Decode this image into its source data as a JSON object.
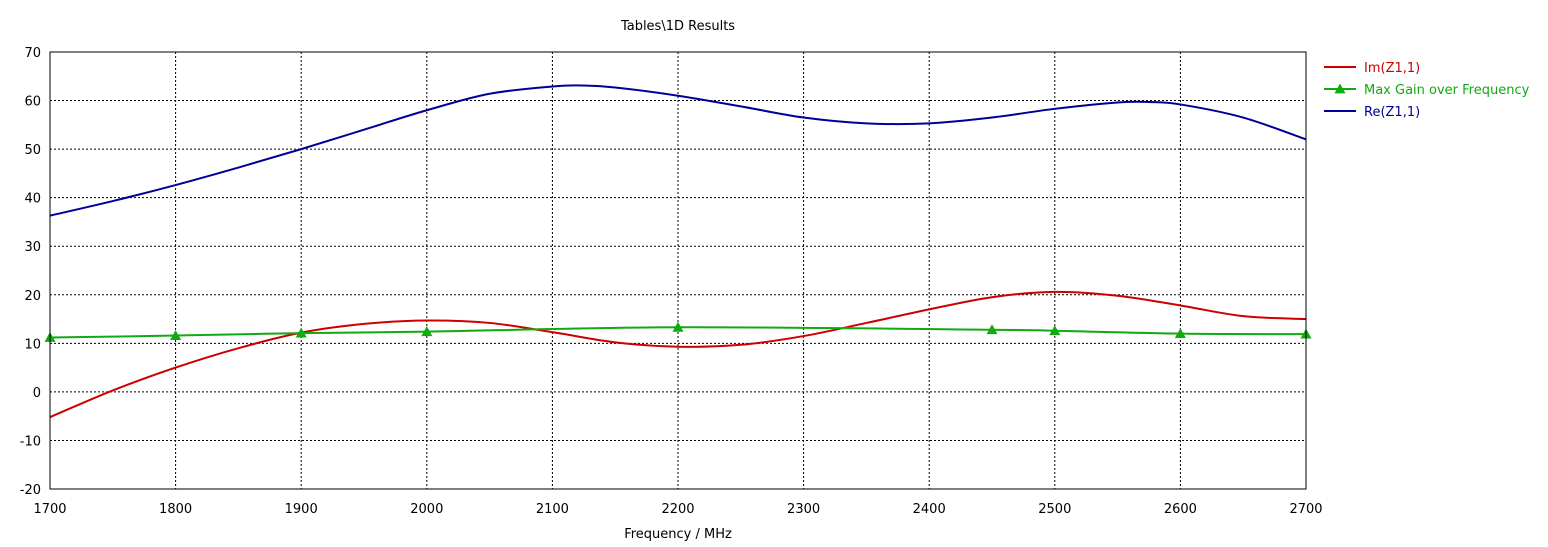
{
  "chart_data": {
    "type": "line",
    "title": "Tables\\1D Results",
    "xlabel": "Frequency / MHz",
    "ylabel": "",
    "xlim": [
      1700,
      2700
    ],
    "ylim": [
      -20,
      70
    ],
    "xticks": [
      1700,
      1800,
      1900,
      2000,
      2100,
      2200,
      2300,
      2400,
      2500,
      2600,
      2700
    ],
    "yticks": [
      -20,
      -10,
      0,
      10,
      20,
      30,
      40,
      50,
      60,
      70
    ],
    "grid": true,
    "legend_position": "right",
    "series": [
      {
        "name": "Im(Z1,1)",
        "color": "#cc0000",
        "marker": "none",
        "x": [
          1700,
          1750,
          1800,
          1850,
          1900,
          1950,
          2000,
          2050,
          2100,
          2150,
          2200,
          2250,
          2300,
          2350,
          2400,
          2450,
          2500,
          2550,
          2600,
          2650,
          2700
        ],
        "y": [
          -5.2,
          0.3,
          5.0,
          9.0,
          12.2,
          14.0,
          14.7,
          14.2,
          12.3,
          10.2,
          9.3,
          9.7,
          11.5,
          14.2,
          17.0,
          19.5,
          20.6,
          19.8,
          17.8,
          15.6,
          15.0
        ]
      },
      {
        "name": "Max Gain over Frequency",
        "color": "#11aa11",
        "marker": "triangle",
        "x": [
          1700,
          1800,
          1900,
          2000,
          2200,
          2450,
          2500,
          2600,
          2700
        ],
        "y": [
          11.2,
          11.6,
          12.1,
          12.4,
          13.3,
          12.8,
          12.6,
          12.0,
          11.9
        ]
      },
      {
        "name": "Re(Z1,1)",
        "color": "#000099",
        "marker": "none",
        "x": [
          1700,
          1750,
          1800,
          1850,
          1900,
          1950,
          2000,
          2050,
          2100,
          2125,
          2150,
          2200,
          2250,
          2300,
          2350,
          2400,
          2450,
          2500,
          2550,
          2575,
          2600,
          2650,
          2700
        ],
        "y": [
          36.3,
          39.3,
          42.6,
          46.2,
          50.0,
          54.0,
          58.0,
          61.4,
          62.9,
          63.1,
          62.7,
          61.0,
          58.8,
          56.5,
          55.3,
          55.3,
          56.5,
          58.3,
          59.6,
          59.7,
          59.2,
          56.5,
          52.0
        ]
      }
    ]
  }
}
